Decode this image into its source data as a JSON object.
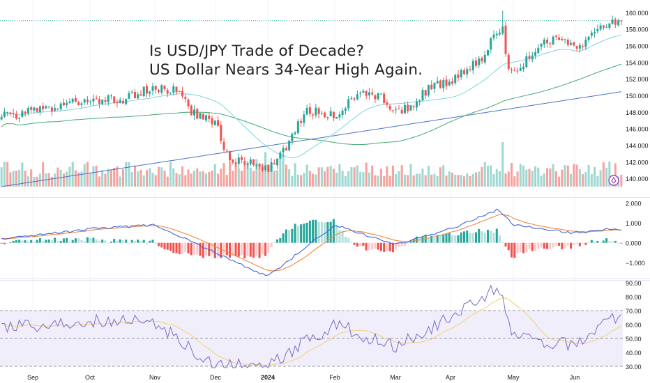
{
  "headline": {
    "line1": "Is USD/JPY Trade of Decade?",
    "line2": "US Dollar Nears 34-Year High Again."
  },
  "colors": {
    "up": "#26a69a",
    "down": "#ef5350",
    "vol_up": "#9fd8d0",
    "vol_down": "#f5a3a0",
    "ma_fast": "#7dd3de",
    "ma_mid": "#43a873",
    "ma_slow": "#4a72c4",
    "macd_line": "#3f63d6",
    "signal_line": "#f0883a",
    "rsi_line": "#7a6bc6",
    "rsi_ma": "#f2d27a",
    "rsi_band": "#f1eefc",
    "grid": "#f0f3fa",
    "axis_text": "#131722"
  },
  "chart_data": [
    {
      "type": "candlestick",
      "title": "",
      "ylim": [
        139.0,
        161.0
      ],
      "y_ticks": [
        "160.000",
        "158.000",
        "156.000",
        "154.000",
        "152.000",
        "150.000",
        "148.000",
        "146.000",
        "144.000",
        "142.000",
        "140.000"
      ],
      "x_ticks": [
        "Sep",
        "Oct",
        "Nov",
        "Dec",
        "2024",
        "Feb",
        "Mar",
        "Apr",
        "May",
        "Jun"
      ],
      "overlays": [
        "moving-average-fast",
        "moving-average-mid",
        "moving-average-slow",
        "volume"
      ],
      "anchor_points": [
        {
          "date": "Sep",
          "close": 147.5
        },
        {
          "date": "Oct",
          "close": 149.5
        },
        {
          "date": "mid-Oct",
          "close": 149.5
        },
        {
          "date": "Nov",
          "close": 151.0
        },
        {
          "date": "mid-Nov",
          "close": 150.5
        },
        {
          "date": "late-Nov",
          "close": 148.0
        },
        {
          "date": "Dec",
          "close": 146.8
        },
        {
          "date": "mid-Dec",
          "close": 141.8
        },
        {
          "date": "late-Dec",
          "close": 142.3
        },
        {
          "date": "2024",
          "close": 141.0
        },
        {
          "date": "early-Jan",
          "close": 143.8
        },
        {
          "date": "mid-Jan",
          "close": 148.2
        },
        {
          "date": "Feb",
          "close": 147.5
        },
        {
          "date": "mid-Feb",
          "close": 150.3
        },
        {
          "date": "late-Feb",
          "close": 150.0
        },
        {
          "date": "Mar",
          "close": 148.0
        },
        {
          "date": "mid-Mar",
          "close": 148.8
        },
        {
          "date": "late-Mar",
          "close": 151.3
        },
        {
          "date": "Apr",
          "close": 151.5
        },
        {
          "date": "mid-Apr",
          "close": 154.5
        },
        {
          "date": "late-Apr",
          "close": 158.0
        },
        {
          "date": "peak",
          "close": 158.3,
          "high": 160.2
        },
        {
          "date": "May",
          "close": 152.5
        },
        {
          "date": "mid-May",
          "close": 156.5
        },
        {
          "date": "late-May",
          "close": 157.0
        },
        {
          "date": "Jun",
          "close": 155.5
        },
        {
          "date": "mid-Jun",
          "close": 157.5
        },
        {
          "date": "last",
          "close": 159.0
        }
      ]
    },
    {
      "type": "macd",
      "ylim": [
        -1.8,
        2.2
      ],
      "y_ticks": [
        "2.000",
        "1.000",
        "0.000",
        "−1.000"
      ],
      "anchor_points": [
        {
          "date": "Sep",
          "macd": 0.2
        },
        {
          "date": "Oct",
          "macd": 0.7
        },
        {
          "date": "Nov",
          "macd": 0.9
        },
        {
          "date": "Dec",
          "macd": -0.5
        },
        {
          "date": "2024",
          "macd": -1.7
        },
        {
          "date": "Feb",
          "macd": 0.9
        },
        {
          "date": "Mar",
          "macd": -0.1
        },
        {
          "date": "Apr",
          "macd": 0.7
        },
        {
          "date": "late-Apr",
          "macd": 1.7
        },
        {
          "date": "May",
          "macd": 0.9
        },
        {
          "date": "Jun",
          "macd": 0.5
        },
        {
          "date": "last",
          "macd": 0.7
        }
      ]
    },
    {
      "type": "rsi",
      "ylim": [
        28,
        92
      ],
      "y_ticks": [
        "90.00",
        "80.00",
        "70.00",
        "60.00",
        "50.00",
        "40.00",
        "30.00"
      ],
      "band": [
        30,
        70
      ],
      "anchor_points": [
        {
          "date": "Sep",
          "rsi": 58
        },
        {
          "date": "Oct",
          "rsi": 63
        },
        {
          "date": "Nov",
          "rsi": 62
        },
        {
          "date": "Dec",
          "rsi": 30
        },
        {
          "date": "2024",
          "rsi": 31
        },
        {
          "date": "Feb",
          "rsi": 60
        },
        {
          "date": "Mar",
          "rsi": 44
        },
        {
          "date": "Apr",
          "rsi": 65
        },
        {
          "date": "late-Apr",
          "rsi": 87
        },
        {
          "date": "May",
          "rsi": 52
        },
        {
          "date": "Jun",
          "rsi": 45
        },
        {
          "date": "last",
          "rsi": 65
        }
      ]
    }
  ]
}
